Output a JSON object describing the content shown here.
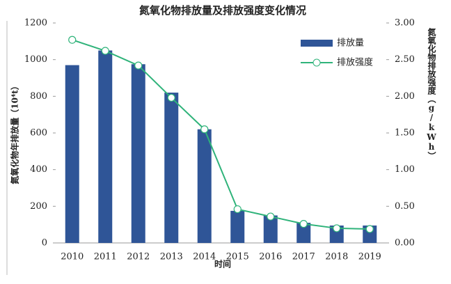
{
  "chart_data": {
    "type": "bar-line",
    "title": "氮氧化物排放量及排放强度变化情况",
    "x_label": "时间",
    "y_label": "氮氧化物年排放量（10⁴t）",
    "y2_label": "氮氧化物排放强度（g/kWh）",
    "categories": [
      "2010",
      "2011",
      "2012",
      "2013",
      "2014",
      "2015",
      "2016",
      "2017",
      "2018",
      "2019"
    ],
    "series": [
      {
        "name": "排放量",
        "type": "bar",
        "color": "#2f5597",
        "values": [
          970,
          1050,
          975,
          820,
          620,
          175,
          150,
          110,
          95,
          95
        ]
      },
      {
        "name": "排放强度",
        "type": "line",
        "axis": "y2",
        "color": "#2fb37a",
        "values": [
          2.77,
          2.62,
          2.42,
          1.98,
          1.55,
          0.46,
          0.36,
          0.26,
          0.2,
          0.19
        ]
      }
    ],
    "ylim": [
      0,
      1200
    ],
    "yticks": [
      0,
      200,
      400,
      600,
      800,
      1000,
      1200
    ],
    "y2lim": [
      0,
      3
    ],
    "y2ticks": [
      {
        "value": 0,
        "label": "0.00"
      },
      {
        "value": 0.5,
        "label": "0.50"
      },
      {
        "value": 1,
        "label": "1.00"
      },
      {
        "value": 1.5,
        "label": "1.50"
      },
      {
        "value": 2,
        "label": "2.00"
      },
      {
        "value": 2.5,
        "label": "2.50"
      },
      {
        "value": 3,
        "label": "3.00"
      }
    ],
    "legend": "top-right"
  }
}
